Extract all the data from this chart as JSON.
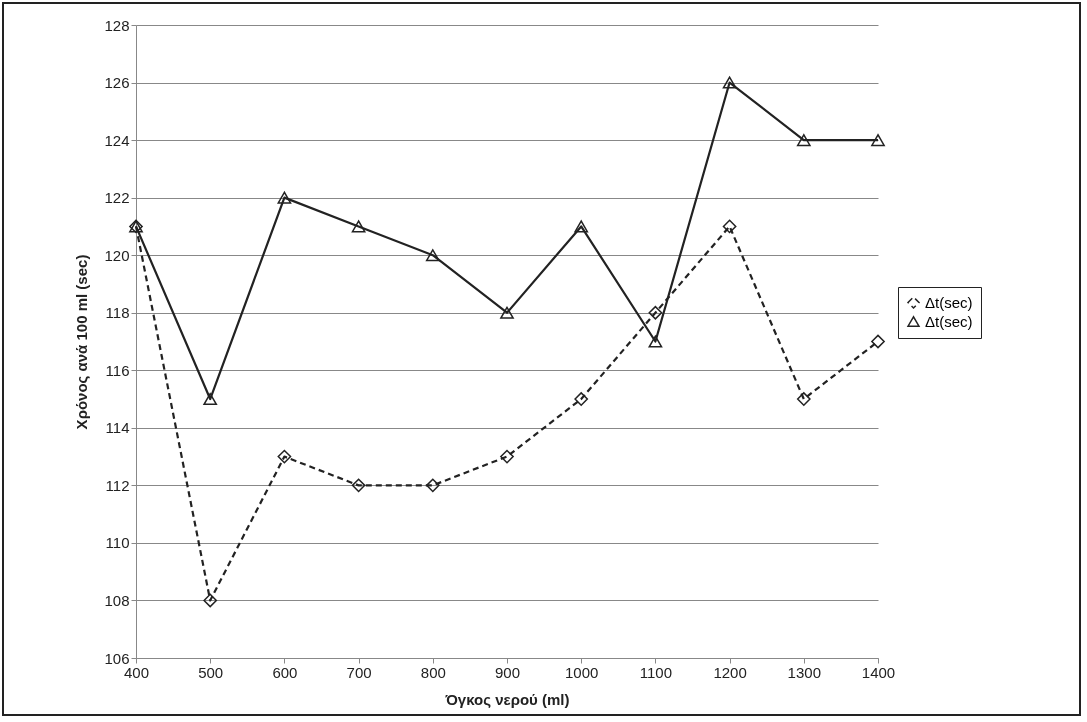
{
  "chart_data": {
    "type": "line",
    "xlabel": "Όγκος νερού (ml)",
    "ylabel": "Χρόνος ανά 100 ml (sec)",
    "x": [
      400,
      500,
      600,
      700,
      800,
      900,
      1000,
      1100,
      1200,
      1300,
      1400
    ],
    "series": [
      {
        "name": "Δt(sec)",
        "color": "#222222",
        "marker": "diamond",
        "line_style": "dashed",
        "values": [
          121,
          108,
          113,
          112,
          112,
          113,
          115,
          118,
          121,
          115,
          117
        ]
      },
      {
        "name": "Δt(sec)",
        "color": "#222222",
        "marker": "triangle",
        "line_style": "solid",
        "values": [
          121,
          115,
          122,
          121,
          120,
          118,
          121,
          117,
          126,
          124,
          124
        ]
      }
    ],
    "xlim": [
      400,
      1400
    ],
    "xticks": [
      400,
      500,
      600,
      700,
      800,
      900,
      1000,
      1100,
      1200,
      1300,
      1400
    ],
    "ylim": [
      106,
      128
    ],
    "yticks": [
      106,
      108,
      110,
      112,
      114,
      116,
      118,
      120,
      122,
      124,
      126,
      128
    ],
    "grid": "y",
    "legend": "right"
  }
}
